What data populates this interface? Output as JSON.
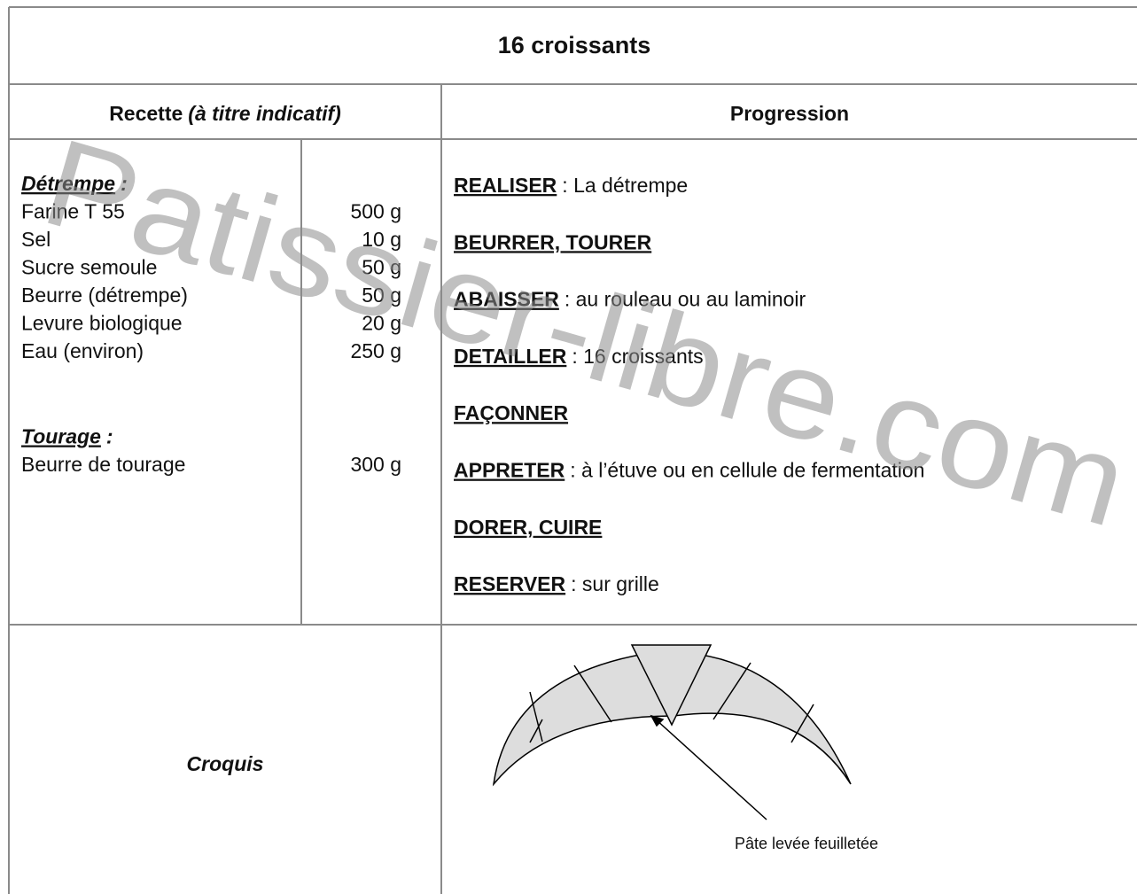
{
  "title": "16 croissants",
  "headers": {
    "recipe": "Recette",
    "recipe_note": "(à titre indicatif)",
    "progression": "Progression"
  },
  "recipe": {
    "sections": [
      {
        "name": "Détrempe",
        "colon": ":",
        "items": [
          {
            "name": "Farine T 55",
            "qty": "500 g"
          },
          {
            "name": "Sel",
            "qty": "10 g"
          },
          {
            "name": "Sucre semoule",
            "qty": "50 g"
          },
          {
            "name": "Beurre (détrempe)",
            "qty": "50 g"
          },
          {
            "name": "Levure biologique",
            "qty": "20 g"
          },
          {
            "name": "Eau (environ)",
            "qty": "250 g"
          }
        ]
      },
      {
        "name": "Tourage",
        "colon": ":",
        "items": [
          {
            "name": "Beurre de tourage",
            "qty": "300 g"
          }
        ]
      }
    ]
  },
  "progression": [
    {
      "verb": "REALISER",
      "detail": ": La détrempe"
    },
    {
      "verb": "BEURRER, TOURER"
    },
    {
      "verb": "ABAISSER",
      "detail": ": au rouleau ou au laminoir"
    },
    {
      "verb": "DETAILLER",
      "detail": ": 16 croissants"
    },
    {
      "verb": "FAÇONNER"
    },
    {
      "verb": "APPRETER",
      "detail": ": à l’étuve ou en cellule de fermentation"
    },
    {
      "verb": "DORER, CUIRE"
    },
    {
      "verb": "RESERVER",
      "detail": ": sur grille"
    }
  ],
  "sketch": {
    "label": "Croquis",
    "caption": "Pâte levée feuilletée"
  },
  "watermark": "Patissier-libre.com"
}
